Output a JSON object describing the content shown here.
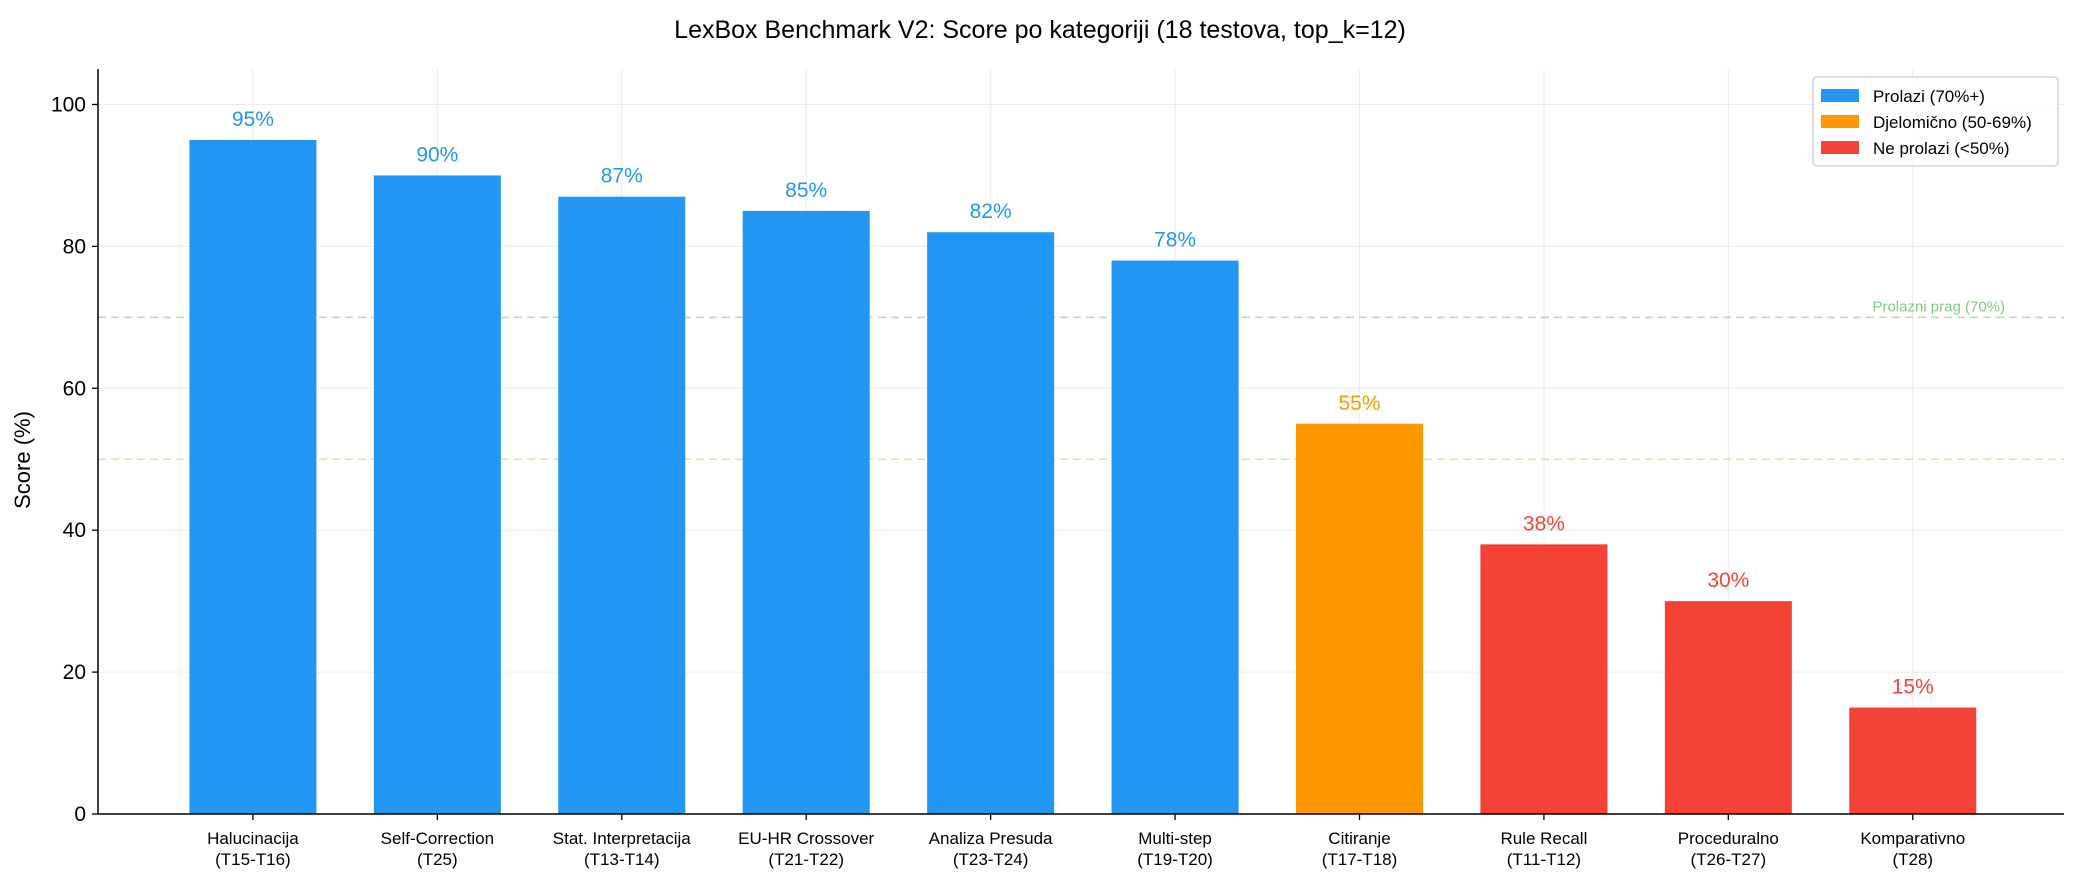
{
  "chart_data": {
    "type": "bar",
    "title": "LexBox Benchmark V2: Score po kategoriji (18 testova, top_k=12)",
    "xlabel": "",
    "ylabel": "Score (%)",
    "ylim": [
      0,
      105
    ],
    "yticks": [
      0,
      20,
      40,
      60,
      80,
      100
    ],
    "grid": true,
    "legend_position": "top-right",
    "categories": [
      [
        "Halucinacija",
        "(T15-T16)"
      ],
      [
        "Self-Correction",
        "(T25)"
      ],
      [
        "Stat. Interpretacija",
        "(T13-T14)"
      ],
      [
        "EU-HR Crossover",
        "(T21-T22)"
      ],
      [
        "Analiza Presuda",
        "(T23-T24)"
      ],
      [
        "Multi-step",
        "(T19-T20)"
      ],
      [
        "Citiranje",
        "(T17-T18)"
      ],
      [
        "Rule Recall",
        "(T11-T12)"
      ],
      [
        "Proceduralno",
        "(T26-T27)"
      ],
      [
        "Komparativno",
        "(T28)"
      ]
    ],
    "values": [
      95,
      90,
      87,
      85,
      82,
      78,
      55,
      38,
      30,
      15
    ],
    "data_labels": [
      "95%",
      "90%",
      "87%",
      "85%",
      "82%",
      "78%",
      "55%",
      "38%",
      "30%",
      "15%"
    ],
    "legend": [
      {
        "label": "Prolazi (70%+)",
        "color": "#2196F3"
      },
      {
        "label": "Djelomično (50-69%)",
        "color": "#FF9800"
      },
      {
        "label": "Ne prolazi (<50%)",
        "color": "#F44336"
      }
    ],
    "reference_lines": [
      {
        "value": 70,
        "color": "#4CAF50",
        "label": "Prolazni prag (70%)"
      },
      {
        "value": 50,
        "color": "#FF9800",
        "label": ""
      }
    ]
  }
}
